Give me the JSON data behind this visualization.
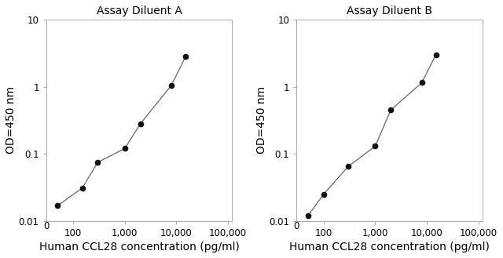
{
  "panel_A": {
    "title": "Assay Diluent A",
    "x": [
      50,
      150,
      300,
      1000,
      2000,
      8000,
      15000
    ],
    "y": [
      0.017,
      0.031,
      0.075,
      0.12,
      0.28,
      1.05,
      2.8
    ]
  },
  "panel_B": {
    "title": "Assay Diluent B",
    "x": [
      50,
      100,
      300,
      1000,
      2000,
      8000,
      15000
    ],
    "y": [
      0.012,
      0.025,
      0.065,
      0.13,
      0.45,
      1.15,
      3.0
    ]
  },
  "xlabel": "Human CCL28 concentration (pg/ml)",
  "ylabel": "OD=450 nm",
  "xlim": [
    30,
    120000
  ],
  "ylim": [
    0.01,
    10
  ],
  "xticks": [
    100,
    1000,
    10000,
    100000
  ],
  "xtick_labels": [
    "100",
    "1,000",
    "10,000",
    "100,000"
  ],
  "yticks": [
    0.01,
    0.1,
    1,
    10
  ],
  "ytick_labels": [
    "0.01",
    "0.1",
    "1",
    "10"
  ],
  "line_color": "#666666",
  "marker_color": "#111111",
  "title_fontsize": 10,
  "label_fontsize": 10,
  "tick_fontsize": 8.5,
  "text_color": "#000000",
  "spine_color": "#aaaaaa"
}
